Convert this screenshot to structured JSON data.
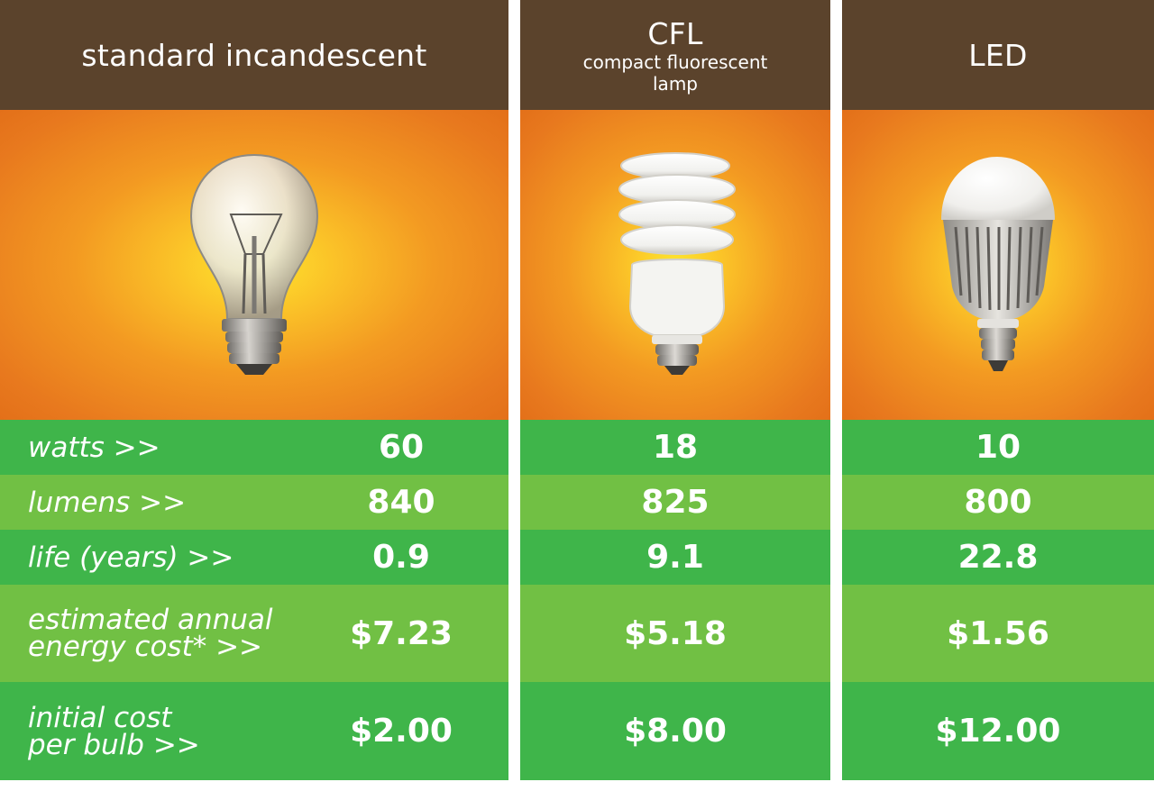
{
  "columns": [
    {
      "title": "standard incandescent",
      "subtitle": "",
      "icon": "incandescent-bulb-icon"
    },
    {
      "title": "CFL",
      "subtitle": "compact fluorescent lamp",
      "icon": "cfl-bulb-icon"
    },
    {
      "title": "LED",
      "subtitle": "",
      "icon": "led-bulb-icon"
    }
  ],
  "rows": [
    {
      "label": "watts >>",
      "values": [
        "60",
        "18",
        "10"
      ]
    },
    {
      "label": "lumens >>",
      "values": [
        "840",
        "825",
        "800"
      ]
    },
    {
      "label": "life (years) >>",
      "values": [
        "0.9",
        "9.1",
        "22.8"
      ]
    },
    {
      "label": "estimated annual\nenergy cost* >>",
      "values": [
        "$7.23",
        "$5.18",
        "$1.56"
      ]
    },
    {
      "label": "initial cost\nper bulb >>",
      "values": [
        "$2.00",
        "$8.00",
        "$12.00"
      ]
    }
  ],
  "colors": {
    "header": "#5b432c",
    "row_dark": "#3fb54a",
    "row_light": "#71c044",
    "glow_center": "#fde52e",
    "glow_edge": "#e37019"
  }
}
